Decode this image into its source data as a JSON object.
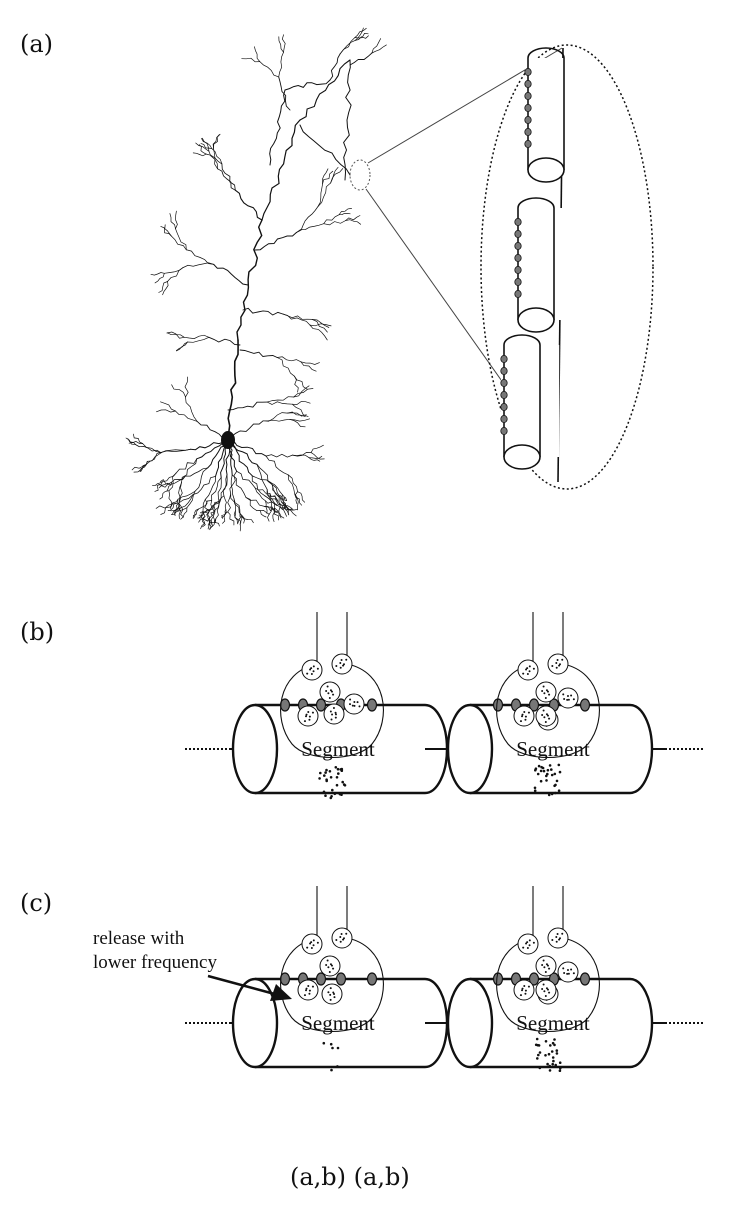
{
  "panels": {
    "a": {
      "label": "(a)"
    },
    "b": {
      "label": "(b)",
      "segments": [
        "Segment",
        "Segment"
      ]
    },
    "c": {
      "label": "(c)",
      "segments": [
        "Segment",
        "Segment"
      ],
      "annotation": {
        "line1": "release with",
        "line2": "lower frequency"
      }
    }
  },
  "colors": {
    "ink": "#111111",
    "receptor": "#777777",
    "background": "#ffffff"
  },
  "caption_residue": "(a,b) (a,b)"
}
